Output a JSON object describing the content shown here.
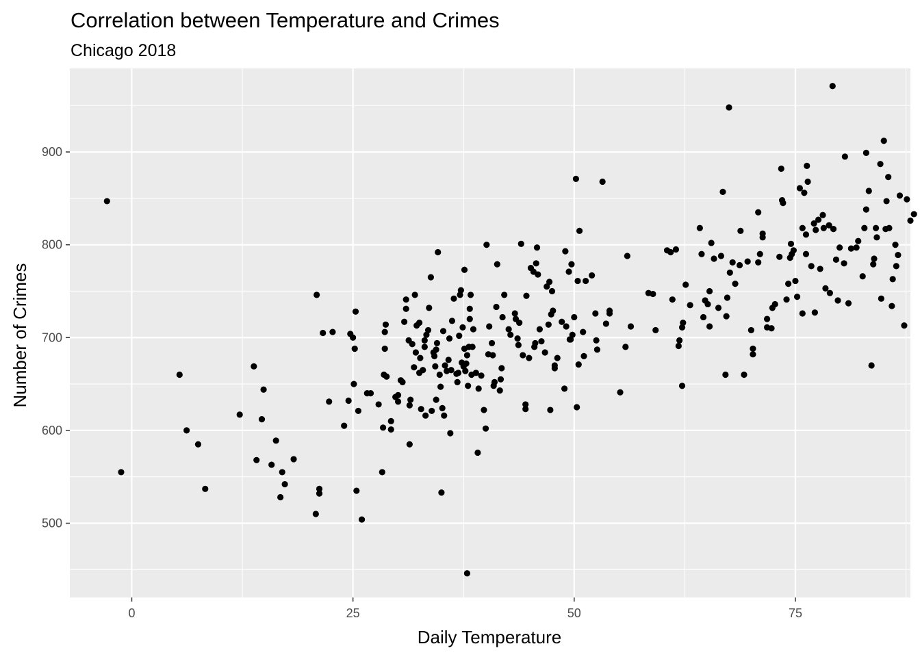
{
  "chart_data": {
    "type": "scatter",
    "title": "Correlation between Temperature and Crimes",
    "subtitle": "Chicago 2018",
    "xlabel": "Daily Temperature",
    "ylabel": "Number of Crimes",
    "xlim": [
      -7,
      88
    ],
    "ylim": [
      420,
      990
    ],
    "x_ticks": [
      0,
      25,
      50,
      75
    ],
    "x_tick_labels": [
      "0",
      "25",
      "50",
      "75"
    ],
    "y_ticks": [
      500,
      600,
      700,
      800,
      900
    ],
    "y_tick_labels": [
      "500",
      "600",
      "700",
      "800",
      "900"
    ],
    "grid": true,
    "panel_background": "#ebebeb",
    "grid_color": "#ffffff",
    "point_color": "#000000",
    "points": [
      [
        -2.8,
        847
      ],
      [
        -1.2,
        555
      ],
      [
        5.4,
        660
      ],
      [
        6.2,
        600
      ],
      [
        7.5,
        585
      ],
      [
        8.3,
        537
      ],
      [
        12.2,
        617
      ],
      [
        13.8,
        669
      ],
      [
        14.1,
        568
      ],
      [
        14.7,
        612
      ],
      [
        14.9,
        644
      ],
      [
        15.8,
        563
      ],
      [
        16.3,
        589
      ],
      [
        16.8,
        528
      ],
      [
        17.0,
        555
      ],
      [
        17.3,
        542
      ],
      [
        18.3,
        569
      ],
      [
        20.8,
        510
      ],
      [
        20.9,
        746
      ],
      [
        21.2,
        537
      ],
      [
        21.2,
        532
      ],
      [
        21.6,
        705
      ],
      [
        22.3,
        631
      ],
      [
        22.7,
        706
      ],
      [
        24.0,
        605
      ],
      [
        24.5,
        632
      ],
      [
        24.7,
        704
      ],
      [
        25.0,
        700
      ],
      [
        25.1,
        650
      ],
      [
        25.2,
        688
      ],
      [
        25.3,
        728
      ],
      [
        25.4,
        535
      ],
      [
        25.6,
        621
      ],
      [
        26.0,
        504
      ],
      [
        26.6,
        640
      ],
      [
        27.0,
        640
      ],
      [
        27.9,
        628
      ],
      [
        28.3,
        555
      ],
      [
        28.4,
        603
      ],
      [
        28.5,
        660
      ],
      [
        28.6,
        688
      ],
      [
        28.6,
        706
      ],
      [
        28.7,
        714
      ],
      [
        28.8,
        658
      ],
      [
        29.3,
        601
      ],
      [
        29.3,
        610
      ],
      [
        29.8,
        636
      ],
      [
        30.1,
        631
      ],
      [
        30.1,
        638
      ],
      [
        30.4,
        654
      ],
      [
        30.6,
        652
      ],
      [
        30.8,
        717
      ],
      [
        31.0,
        741
      ],
      [
        31.0,
        731
      ],
      [
        31.3,
        697
      ],
      [
        31.4,
        585
      ],
      [
        31.4,
        627
      ],
      [
        31.5,
        633
      ],
      [
        31.7,
        693
      ],
      [
        31.9,
        668
      ],
      [
        32.0,
        746
      ],
      [
        32.1,
        684
      ],
      [
        32.2,
        713
      ],
      [
        32.5,
        662
      ],
      [
        32.5,
        716
      ],
      [
        32.6,
        678
      ],
      [
        32.7,
        623
      ],
      [
        32.9,
        665
      ],
      [
        33.1,
        690
      ],
      [
        33.1,
        697
      ],
      [
        33.2,
        616
      ],
      [
        33.3,
        703
      ],
      [
        33.5,
        708
      ],
      [
        33.6,
        732
      ],
      [
        33.8,
        765
      ],
      [
        33.9,
        621
      ],
      [
        34.1,
        684
      ],
      [
        34.2,
        680
      ],
      [
        34.3,
        669
      ],
      [
        34.4,
        633
      ],
      [
        34.4,
        687
      ],
      [
        34.5,
        694
      ],
      [
        34.6,
        792
      ],
      [
        34.8,
        660
      ],
      [
        34.9,
        647
      ],
      [
        35.0,
        533
      ],
      [
        35.1,
        624
      ],
      [
        35.2,
        707
      ],
      [
        35.3,
        616
      ],
      [
        35.4,
        670
      ],
      [
        35.6,
        664
      ],
      [
        35.8,
        676
      ],
      [
        35.9,
        699
      ],
      [
        36.0,
        597
      ],
      [
        36.1,
        665
      ],
      [
        36.2,
        718
      ],
      [
        36.4,
        742
      ],
      [
        36.7,
        661
      ],
      [
        36.8,
        652
      ],
      [
        36.9,
        662
      ],
      [
        37.0,
        702
      ],
      [
        37.1,
        746
      ],
      [
        37.2,
        751
      ],
      [
        37.3,
        673
      ],
      [
        37.4,
        711
      ],
      [
        37.5,
        669
      ],
      [
        37.6,
        688
      ],
      [
        37.6,
        773
      ],
      [
        37.7,
        664
      ],
      [
        37.8,
        672
      ],
      [
        37.9,
        681
      ],
      [
        37.9,
        446
      ],
      [
        38.0,
        648
      ],
      [
        38.1,
        690
      ],
      [
        38.2,
        731
      ],
      [
        38.2,
        720
      ],
      [
        38.3,
        746
      ],
      [
        38.4,
        660
      ],
      [
        38.5,
        690
      ],
      [
        38.6,
        709
      ],
      [
        38.9,
        662
      ],
      [
        39.1,
        576
      ],
      [
        39.2,
        645
      ],
      [
        39.5,
        659
      ],
      [
        39.8,
        622
      ],
      [
        40.0,
        602
      ],
      [
        40.1,
        800
      ],
      [
        40.3,
        682
      ],
      [
        40.4,
        712
      ],
      [
        40.7,
        694
      ],
      [
        40.8,
        681
      ],
      [
        40.9,
        648
      ],
      [
        41.0,
        652
      ],
      [
        41.2,
        733
      ],
      [
        41.3,
        779
      ],
      [
        41.6,
        643
      ],
      [
        41.7,
        655
      ],
      [
        41.8,
        667
      ],
      [
        41.9,
        722
      ],
      [
        42.1,
        746
      ],
      [
        42.6,
        709
      ],
      [
        42.8,
        703
      ],
      [
        43.3,
        726
      ],
      [
        43.4,
        720
      ],
      [
        43.6,
        699
      ],
      [
        43.7,
        692
      ],
      [
        43.8,
        716
      ],
      [
        44.0,
        801
      ],
      [
        44.2,
        681
      ],
      [
        44.5,
        628
      ],
      [
        44.5,
        623
      ],
      [
        44.6,
        745
      ],
      [
        44.9,
        678
      ],
      [
        45.1,
        775
      ],
      [
        45.4,
        771
      ],
      [
        45.5,
        690
      ],
      [
        45.6,
        694
      ],
      [
        45.7,
        780
      ],
      [
        45.8,
        797
      ],
      [
        45.9,
        768
      ],
      [
        46.1,
        709
      ],
      [
        46.3,
        696
      ],
      [
        46.7,
        684
      ],
      [
        46.9,
        755
      ],
      [
        47.1,
        714
      ],
      [
        47.2,
        760
      ],
      [
        47.3,
        622
      ],
      [
        47.4,
        725
      ],
      [
        47.5,
        750
      ],
      [
        47.6,
        729
      ],
      [
        47.8,
        667
      ],
      [
        47.8,
        670
      ],
      [
        48.1,
        678
      ],
      [
        48.6,
        717
      ],
      [
        48.9,
        645
      ],
      [
        49.0,
        793
      ],
      [
        49.1,
        712
      ],
      [
        49.4,
        771
      ],
      [
        49.5,
        698
      ],
      [
        49.6,
        698
      ],
      [
        49.7,
        779
      ],
      [
        49.8,
        703
      ],
      [
        50.0,
        722
      ],
      [
        50.3,
        625
      ],
      [
        50.2,
        871
      ],
      [
        50.4,
        761
      ],
      [
        50.5,
        671
      ],
      [
        50.6,
        815
      ],
      [
        51.0,
        706
      ],
      [
        51.1,
        680
      ],
      [
        51.3,
        761
      ],
      [
        52.0,
        767
      ],
      [
        52.4,
        726
      ],
      [
        52.5,
        697
      ],
      [
        52.6,
        687
      ],
      [
        53.2,
        868
      ],
      [
        53.6,
        715
      ],
      [
        54.0,
        726
      ],
      [
        54.0,
        729
      ],
      [
        55.2,
        641
      ],
      [
        55.8,
        690
      ],
      [
        56.0,
        788
      ],
      [
        56.4,
        712
      ],
      [
        58.4,
        748
      ],
      [
        58.9,
        747
      ],
      [
        59.2,
        708
      ],
      [
        60.5,
        794
      ],
      [
        60.9,
        792
      ],
      [
        61.1,
        741
      ],
      [
        61.5,
        795
      ],
      [
        61.8,
        691
      ],
      [
        61.9,
        697
      ],
      [
        62.2,
        711
      ],
      [
        62.3,
        716
      ],
      [
        62.2,
        648
      ],
      [
        62.6,
        757
      ],
      [
        63.1,
        735
      ],
      [
        64.2,
        818
      ],
      [
        64.4,
        790
      ],
      [
        64.6,
        722
      ],
      [
        64.8,
        740
      ],
      [
        65.1,
        736
      ],
      [
        65.3,
        750
      ],
      [
        65.3,
        712
      ],
      [
        65.5,
        802
      ],
      [
        65.8,
        785
      ],
      [
        66.3,
        732
      ],
      [
        66.6,
        788
      ],
      [
        66.8,
        857
      ],
      [
        67.1,
        660
      ],
      [
        67.2,
        723
      ],
      [
        67.3,
        743
      ],
      [
        67.5,
        948
      ],
      [
        67.6,
        770
      ],
      [
        67.9,
        781
      ],
      [
        68.2,
        758
      ],
      [
        68.7,
        778
      ],
      [
        68.8,
        815
      ],
      [
        69.2,
        660
      ],
      [
        69.6,
        782
      ],
      [
        70.0,
        708
      ],
      [
        70.2,
        682
      ],
      [
        70.2,
        688
      ],
      [
        70.8,
        781
      ],
      [
        70.8,
        835
      ],
      [
        71.0,
        790
      ],
      [
        71.3,
        808
      ],
      [
        71.3,
        812
      ],
      [
        71.8,
        720
      ],
      [
        71.8,
        711
      ],
      [
        72.3,
        710
      ],
      [
        72.4,
        732
      ],
      [
        72.7,
        736
      ],
      [
        73.2,
        787
      ],
      [
        73.4,
        882
      ],
      [
        73.5,
        848
      ],
      [
        73.6,
        845
      ],
      [
        74.0,
        741
      ],
      [
        74.2,
        758
      ],
      [
        74.4,
        786
      ],
      [
        74.5,
        801
      ],
      [
        74.6,
        790
      ],
      [
        74.8,
        794
      ],
      [
        75.0,
        761
      ],
      [
        75.2,
        744
      ],
      [
        75.5,
        861
      ],
      [
        75.8,
        818
      ],
      [
        75.8,
        726
      ],
      [
        76.0,
        856
      ],
      [
        76.2,
        790
      ],
      [
        76.2,
        811
      ],
      [
        76.3,
        885
      ],
      [
        76.4,
        868
      ],
      [
        76.8,
        777
      ],
      [
        77.1,
        823
      ],
      [
        77.2,
        727
      ],
      [
        77.3,
        816
      ],
      [
        77.6,
        827
      ],
      [
        77.8,
        774
      ],
      [
        78.1,
        832
      ],
      [
        78.2,
        818
      ],
      [
        78.4,
        753
      ],
      [
        78.8,
        821
      ],
      [
        78.9,
        748
      ],
      [
        79.2,
        971
      ],
      [
        79.3,
        817
      ],
      [
        79.6,
        784
      ],
      [
        79.8,
        740
      ],
      [
        80.0,
        797
      ],
      [
        80.5,
        780
      ],
      [
        80.6,
        895
      ],
      [
        81.0,
        737
      ],
      [
        81.3,
        796
      ],
      [
        81.9,
        797
      ],
      [
        82.1,
        804
      ],
      [
        82.6,
        766
      ],
      [
        82.8,
        818
      ],
      [
        83.0,
        899
      ],
      [
        83.0,
        838
      ],
      [
        83.3,
        858
      ],
      [
        83.6,
        670
      ],
      [
        83.8,
        779
      ],
      [
        83.9,
        785
      ],
      [
        84.1,
        818
      ],
      [
        84.2,
        808
      ],
      [
        84.6,
        887
      ],
      [
        84.7,
        742
      ],
      [
        85.0,
        912
      ],
      [
        85.2,
        817
      ],
      [
        85.3,
        847
      ],
      [
        85.5,
        873
      ],
      [
        85.6,
        818
      ],
      [
        85.9,
        734
      ],
      [
        86.0,
        763
      ],
      [
        86.3,
        800
      ],
      [
        86.4,
        777
      ],
      [
        86.6,
        789
      ],
      [
        86.8,
        853
      ],
      [
        87.3,
        713
      ],
      [
        87.6,
        849
      ],
      [
        88.0,
        826
      ],
      [
        88.4,
        833
      ]
    ]
  }
}
